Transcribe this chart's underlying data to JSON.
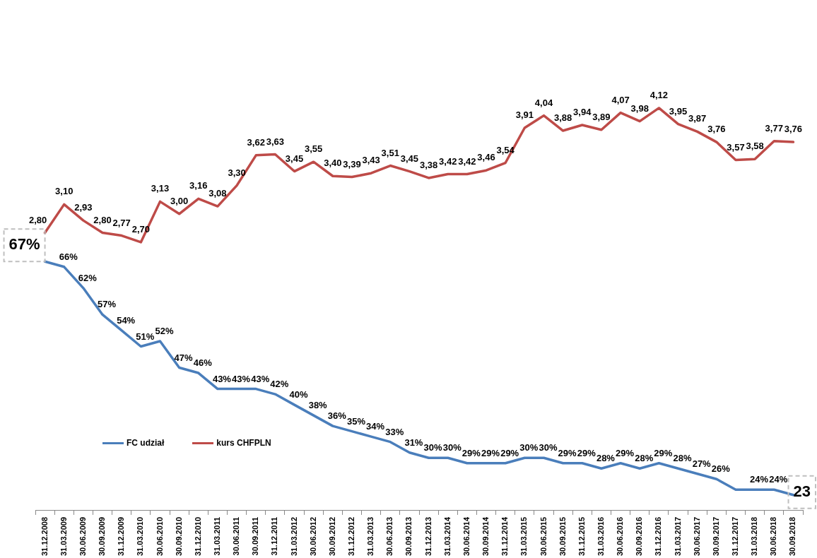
{
  "chart_data": [
    {
      "type": "line",
      "categories": [
        "31.12.2008",
        "31.03.2009",
        "30.06.2009",
        "30.09.2009",
        "31.12.2009",
        "31.03.2010",
        "30.06.2010",
        "30.09.2010",
        "31.12.2010",
        "31.03.2011",
        "30.06.2011",
        "30.09.2011",
        "31.12.2011",
        "31.03.2012",
        "30.06.2012",
        "30.09.2012",
        "31.12.2012",
        "31.03.2013",
        "30.06.2013",
        "30.09.2013",
        "31.12.2013",
        "31.03.2014",
        "30.06.2014",
        "30.09.2014",
        "31.12.2014",
        "31.03.2015",
        "30.06.2015",
        "30.09.2015",
        "31.12.2015",
        "31.03.2016",
        "30.06.2016",
        "30.09.2016",
        "31.12.2016",
        "31.03.2017",
        "30.06.2017",
        "30.09.2017",
        "31.12.2017",
        "31.03.2018",
        "30.06.2018",
        "30.09.2018"
      ],
      "series": [
        {
          "name": "kurs CHFPLN",
          "color": "#be4b48",
          "values": [
            2.8,
            3.1,
            2.93,
            2.8,
            2.77,
            2.7,
            3.13,
            3.0,
            3.16,
            3.08,
            3.3,
            3.62,
            3.63,
            3.45,
            3.55,
            3.4,
            3.39,
            3.43,
            3.51,
            3.45,
            3.38,
            3.42,
            3.42,
            3.46,
            3.54,
            3.91,
            4.04,
            3.88,
            3.94,
            3.89,
            4.07,
            3.98,
            4.12,
            3.95,
            3.87,
            3.76,
            3.57,
            3.58,
            3.77,
            3.76
          ],
          "value_labels": [
            "2,80",
            "3,10",
            "2,93",
            "2,80",
            "2,77",
            "2,70",
            "3,13",
            "3,00",
            "3,16",
            "3,08",
            "3,30",
            "3,62",
            "3,63",
            "3,45",
            "3,55",
            "3,40",
            "3,39",
            "3,43",
            "3,51",
            "3,45",
            "3,38",
            "3,42",
            "3,42",
            "3,46",
            "3,54",
            "3,91",
            "4,04",
            "3,88",
            "3,94",
            "3,89",
            "4,07",
            "3,98",
            "4,12",
            "3,95",
            "3,87",
            "3,76",
            "3,57",
            "3,58",
            "3,77",
            "3,76"
          ]
        }
      ],
      "legend": "bottom left",
      "grid": false,
      "marker": "none",
      "line_style": "solid",
      "tick_labels": false
    },
    {
      "type": "line",
      "categories": [
        "31.12.2008",
        "31.03.2009",
        "30.06.2009",
        "30.09.2009",
        "31.12.2009",
        "31.03.2010",
        "30.06.2010",
        "30.09.2010",
        "31.12.2010",
        "31.03.2011",
        "30.06.2011",
        "30.09.2011",
        "31.12.2011",
        "31.03.2012",
        "30.06.2012",
        "30.09.2012",
        "31.12.2012",
        "31.03.2013",
        "30.06.2013",
        "30.09.2013",
        "31.12.2013",
        "31.03.2014",
        "30.06.2014",
        "30.09.2014",
        "31.12.2014",
        "31.03.2015",
        "30.06.2015",
        "30.09.2015",
        "31.12.2015",
        "31.03.2016",
        "30.06.2016",
        "30.09.2016",
        "31.12.2016",
        "31.03.2017",
        "30.06.2017",
        "30.09.2017",
        "31.12.2017",
        "31.03.2018",
        "30.06.2018",
        "30.09.2018"
      ],
      "series": [
        {
          "name": "FC udział",
          "color": "#4a7ebb",
          "values": [
            67,
            66,
            62,
            57,
            54,
            51,
            52,
            47,
            46,
            43,
            43,
            43,
            42,
            40,
            38,
            36,
            35,
            34,
            33,
            31,
            30,
            30,
            29,
            29,
            29,
            30,
            30,
            29,
            29,
            28,
            29,
            28,
            29,
            28,
            27,
            26,
            24,
            24,
            24,
            23
          ],
          "value_labels": [
            "67%",
            "66%",
            "62%",
            "57%",
            "54%",
            "51%",
            "52%",
            "47%",
            "46%",
            "43%",
            "43%",
            "43%",
            "42%",
            "40%",
            "38%",
            "36%",
            "35%",
            "34%",
            "33%",
            "31%",
            "30%",
            "30%",
            "29%",
            "29%",
            "29%",
            "30%",
            "30%",
            "29%",
            "29%",
            "28%",
            "29%",
            "28%",
            "29%",
            "28%",
            "27%",
            "26%",
            null,
            "24%",
            "24%",
            "23"
          ]
        }
      ],
      "legend": "bottom left",
      "grid": false,
      "marker": "none",
      "line_style": "solid",
      "tick_labels": "x"
    }
  ]
}
